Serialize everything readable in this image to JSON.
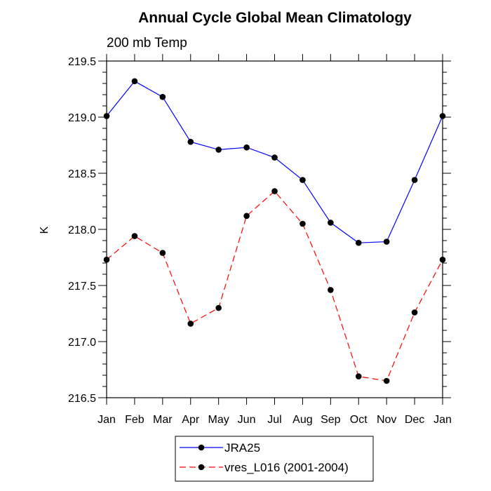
{
  "chart_data": {
    "type": "line",
    "title": "Annual Cycle Global Mean Climatology",
    "subtitle": "200 mb Temp",
    "xlabel": "",
    "ylabel": "K",
    "categories": [
      "Jan",
      "Feb",
      "Mar",
      "Apr",
      "May",
      "Jun",
      "Jul",
      "Aug",
      "Sep",
      "Oct",
      "Nov",
      "Dec",
      "Jan"
    ],
    "ylim": [
      216.5,
      219.5
    ],
    "yticks": [
      216.5,
      217.0,
      217.5,
      218.0,
      218.5,
      219.0,
      219.5
    ],
    "ytick_labels": [
      "216.5",
      "217.0",
      "217.5",
      "218.0",
      "218.5",
      "219.0",
      "219.5"
    ],
    "legend_position": "bottom",
    "grid": false,
    "series": [
      {
        "name": "JRA25",
        "color": "#0000ff",
        "dash": "solid",
        "values": [
          219.01,
          219.32,
          219.18,
          218.78,
          218.71,
          218.73,
          218.64,
          218.44,
          218.06,
          217.88,
          217.89,
          218.44,
          219.01
        ]
      },
      {
        "name": "vres_L016 (2001-2004)",
        "color": "#ff0000",
        "dash": "dashed",
        "values": [
          217.73,
          217.94,
          217.79,
          217.16,
          217.3,
          218.12,
          218.34,
          218.05,
          217.46,
          216.69,
          216.65,
          217.26,
          217.73
        ]
      }
    ]
  }
}
